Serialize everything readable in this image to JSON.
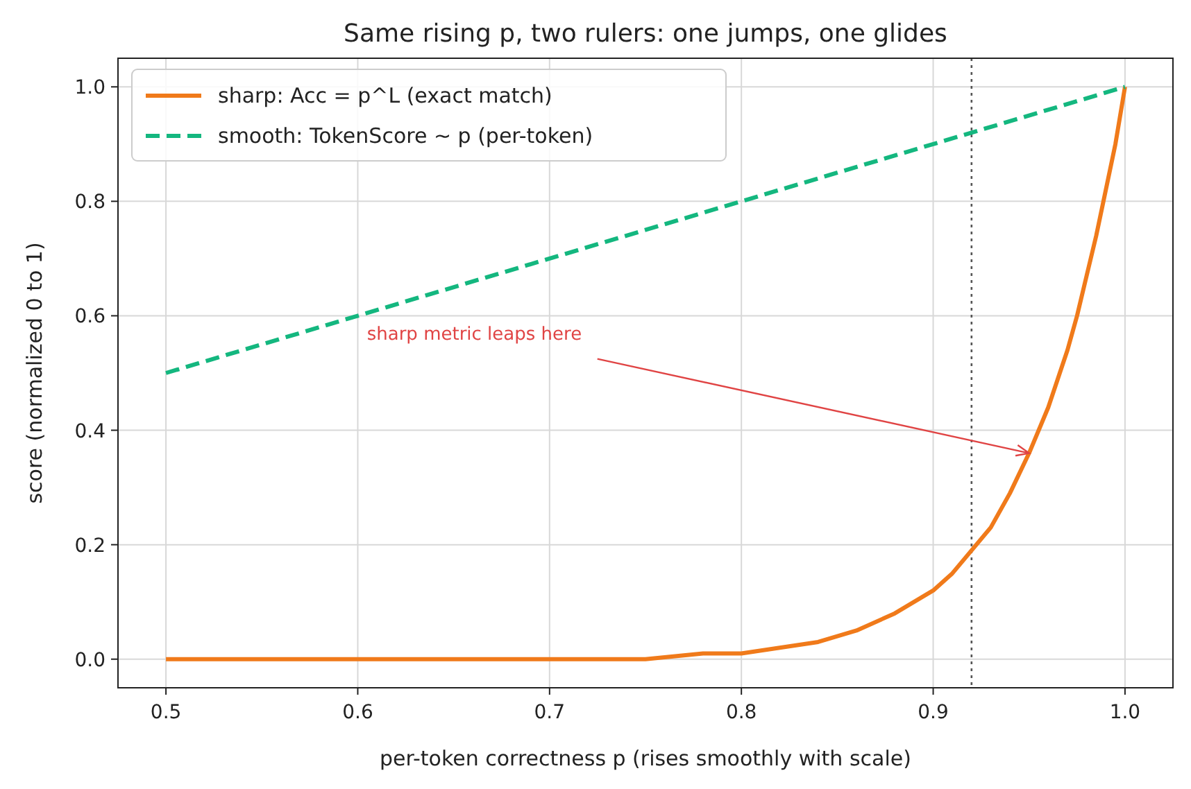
{
  "chart_data": {
    "type": "line",
    "title": "Same rising p, two rulers: one jumps, one glides",
    "xlabel": "per-token correctness p  (rises smoothly with scale)",
    "ylabel": "score (normalized 0 to 1)",
    "xlim": [
      0.475,
      1.025
    ],
    "ylim": [
      -0.05,
      1.05
    ],
    "xticks": [
      0.5,
      0.6,
      0.7,
      0.8,
      0.9,
      {
        "value": 1,
        "label": "1.0"
      }
    ],
    "yticks": [
      {
        "value": 0,
        "label": "0.0"
      },
      0.2,
      0.4,
      0.6,
      0.8,
      {
        "value": 1,
        "label": "1.0"
      }
    ],
    "grid": true,
    "legend": "top left",
    "series": [
      {
        "name": "sharp: Acc = p^L  (exact match)",
        "color": "#f07a1a",
        "line_style": "solid",
        "x": [
          0.5,
          0.6,
          0.7,
          0.75,
          0.78,
          0.8,
          0.82,
          0.84,
          0.86,
          0.88,
          0.89,
          0.9,
          0.91,
          0.92,
          0.93,
          0.94,
          0.95,
          0.96,
          0.965,
          0.97,
          0.975,
          0.98,
          0.985,
          0.99,
          0.995,
          1.0
        ],
        "values": [
          0,
          0,
          0,
          0,
          0.01,
          0.01,
          0.02,
          0.03,
          0.05,
          0.08,
          0.1,
          0.12,
          0.15,
          0.19,
          0.23,
          0.29,
          0.36,
          0.44,
          0.49,
          0.54,
          0.6,
          0.67,
          0.74,
          0.82,
          0.9,
          1.0
        ]
      },
      {
        "name": "smooth: TokenScore ~ p  (per-token)",
        "color": "#14b77f",
        "line_style": "dashed",
        "x": [
          0.5,
          1.0
        ],
        "values": [
          0.5,
          1.0
        ]
      }
    ],
    "ref_lines": [
      {
        "axis": "x",
        "value": 0.92,
        "color": "#555555",
        "line_style": "dotted"
      }
    ],
    "annotations": [
      {
        "text": "sharp metric leaps here",
        "x": 0.95,
        "y": 0.36
      }
    ]
  }
}
